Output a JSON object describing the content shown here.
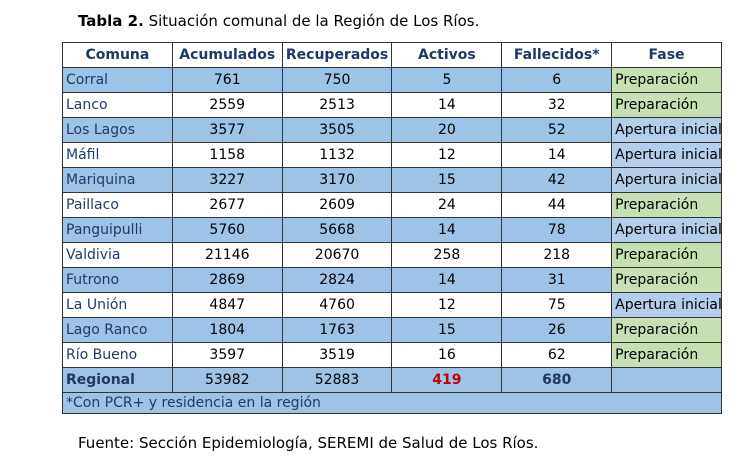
{
  "title": {
    "label": "Tabla 2.",
    "text": "Situación comunal de la Región de Los Ríos."
  },
  "table": {
    "header": [
      "Comuna",
      "Acumulados",
      "Recuperados",
      "Activos",
      "Fallecidos*",
      "Fase"
    ],
    "rows": [
      [
        "Corral",
        "761",
        "750",
        "5",
        "6",
        "Preparación"
      ],
      [
        "Lanco",
        "2559",
        "2513",
        "14",
        "32",
        "Preparación"
      ],
      [
        "Los Lagos",
        "3577",
        "3505",
        "20",
        "52",
        "Apertura inicial"
      ],
      [
        "Máfil",
        "1158",
        "1132",
        "12",
        "14",
        "Apertura inicial"
      ],
      [
        "Mariquina",
        "3227",
        "3170",
        "15",
        "42",
        "Apertura inicial"
      ],
      [
        "Paillaco",
        "2677",
        "2609",
        "24",
        "44",
        "Preparación"
      ],
      [
        "Panguipulli",
        "5760",
        "5668",
        "14",
        "78",
        "Apertura inicial"
      ],
      [
        "Valdivia",
        "21146",
        "20670",
        "258",
        "218",
        "Preparación"
      ],
      [
        "Futrono",
        "2869",
        "2824",
        "14",
        "31",
        "Preparación"
      ],
      [
        "La Unión",
        "4847",
        "4760",
        "12",
        "75",
        "Apertura inicial"
      ],
      [
        "Lago Ranco",
        "1804",
        "1763",
        "15",
        "26",
        "Preparación"
      ],
      [
        "Río Bueno",
        "3597",
        "3519",
        "16",
        "62",
        "Preparación"
      ]
    ],
    "total": [
      "Regional",
      "53982",
      "52883",
      "419",
      "680"
    ],
    "footnote": "*Con PCR+ y residencia en la región"
  },
  "source": "Fuente: Sección Epidemiología, SEREMI de Salud de Los Ríos."
}
